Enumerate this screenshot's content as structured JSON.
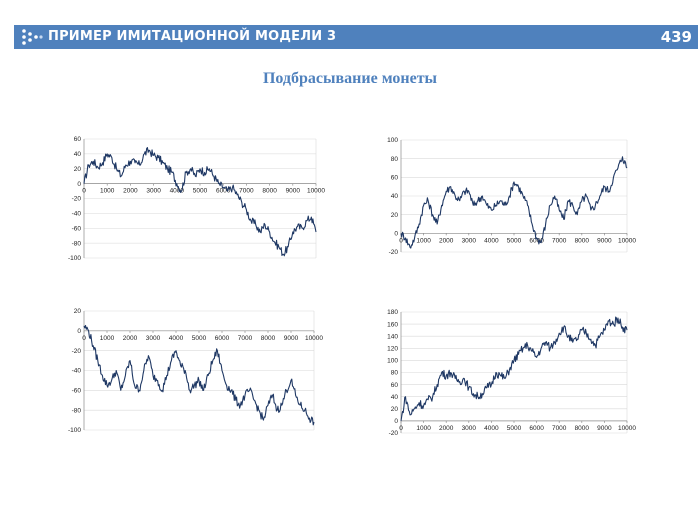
{
  "header": {
    "title": "ПРИМЕР ИМИТАЦИОННОЙ МОДЕЛИ 3",
    "page_number": "439",
    "logo_icon": "dots-arrow-icon",
    "color": "#4f81bd"
  },
  "subtitle": "Подбрасывание монеты",
  "chart_data": [
    {
      "type": "line",
      "ylim": [
        -100,
        60
      ],
      "yticks": [
        60,
        40,
        20,
        0,
        -20,
        -40,
        -60,
        -80,
        -100
      ],
      "xlim": [
        0,
        10000
      ],
      "xticks": [
        0,
        1000,
        2000,
        3000,
        4000,
        5000,
        6000,
        7000,
        8000,
        9000,
        10000
      ],
      "grid": true,
      "x": [
        0,
        200,
        400,
        600,
        800,
        1000,
        1200,
        1400,
        1600,
        1800,
        2000,
        2200,
        2400,
        2600,
        2800,
        3000,
        3200,
        3400,
        3600,
        3800,
        4000,
        4200,
        4400,
        4600,
        4800,
        5000,
        5200,
        5400,
        5600,
        5800,
        6000,
        6200,
        6400,
        6600,
        6800,
        7000,
        7200,
        7400,
        7600,
        7800,
        8000,
        8200,
        8400,
        8600,
        8800,
        9000,
        9200,
        9400,
        9600,
        9800,
        10000
      ],
      "y": [
        0,
        25,
        30,
        22,
        28,
        40,
        35,
        20,
        10,
        25,
        30,
        28,
        25,
        40,
        45,
        38,
        35,
        28,
        20,
        15,
        0,
        -10,
        15,
        20,
        10,
        20,
        15,
        20,
        10,
        0,
        -5,
        -10,
        -5,
        -15,
        -25,
        -35,
        -50,
        -55,
        -65,
        -55,
        -65,
        -78,
        -85,
        -95,
        -85,
        -65,
        -58,
        -60,
        -50,
        -45,
        -65
      ],
      "color": "#1f3864"
    },
    {
      "type": "line",
      "ylim": [
        -20,
        100
      ],
      "yticks": [
        100,
        80,
        60,
        40,
        20,
        0,
        -20
      ],
      "xlim": [
        0,
        10000
      ],
      "xticks": [
        0,
        1000,
        2000,
        3000,
        4000,
        5000,
        6000,
        7000,
        8000,
        9000,
        10000
      ],
      "grid": true,
      "x": [
        0,
        200,
        400,
        600,
        800,
        1000,
        1200,
        1400,
        1600,
        1800,
        2000,
        2200,
        2400,
        2600,
        2800,
        3000,
        3200,
        3400,
        3600,
        3800,
        4000,
        4200,
        4400,
        4600,
        4800,
        5000,
        5200,
        5400,
        5600,
        5800,
        6000,
        6200,
        6400,
        6600,
        6800,
        7000,
        7200,
        7400,
        7600,
        7800,
        8000,
        8200,
        8400,
        8600,
        8800,
        9000,
        9200,
        9400,
        9600,
        9800,
        10000
      ],
      "y": [
        0,
        -5,
        -15,
        -5,
        10,
        30,
        35,
        20,
        10,
        30,
        45,
        50,
        40,
        35,
        45,
        45,
        30,
        35,
        40,
        30,
        25,
        30,
        35,
        30,
        40,
        55,
        50,
        40,
        30,
        10,
        -5,
        -10,
        10,
        30,
        40,
        25,
        15,
        35,
        30,
        20,
        35,
        40,
        25,
        30,
        40,
        50,
        45,
        60,
        70,
        82,
        70
      ],
      "color": "#1f3864"
    },
    {
      "type": "line",
      "ylim": [
        -100,
        20
      ],
      "yticks": [
        20,
        0,
        -20,
        -40,
        -60,
        -80,
        -100
      ],
      "xlim": [
        0,
        10000
      ],
      "xticks": [
        0,
        1000,
        2000,
        3000,
        4000,
        5000,
        6000,
        7000,
        8000,
        9000,
        10000
      ],
      "grid": true,
      "x": [
        0,
        200,
        400,
        600,
        800,
        1000,
        1200,
        1400,
        1600,
        1800,
        2000,
        2200,
        2400,
        2600,
        2800,
        3000,
        3200,
        3400,
        3600,
        3800,
        4000,
        4200,
        4400,
        4600,
        4800,
        5000,
        5200,
        5400,
        5600,
        5800,
        6000,
        6200,
        6400,
        6600,
        6800,
        7000,
        7200,
        7400,
        7600,
        7800,
        8000,
        8200,
        8400,
        8600,
        8800,
        9000,
        9200,
        9400,
        9600,
        9800,
        10000
      ],
      "y": [
        5,
        0,
        -15,
        -30,
        -45,
        -55,
        -50,
        -40,
        -60,
        -45,
        -30,
        -55,
        -60,
        -40,
        -25,
        -45,
        -50,
        -60,
        -45,
        -30,
        -20,
        -35,
        -40,
        -60,
        -55,
        -50,
        -60,
        -45,
        -30,
        -20,
        -40,
        -55,
        -60,
        -70,
        -75,
        -65,
        -60,
        -70,
        -80,
        -90,
        -75,
        -65,
        -80,
        -75,
        -60,
        -50,
        -65,
        -75,
        -80,
        -88,
        -92
      ],
      "color": "#1f3864"
    },
    {
      "type": "line",
      "ylim": [
        -20,
        180
      ],
      "yticks": [
        180,
        160,
        140,
        120,
        100,
        80,
        60,
        40,
        20,
        0,
        -20
      ],
      "xlim": [
        0,
        10000
      ],
      "xticks": [
        0,
        1000,
        2000,
        3000,
        4000,
        5000,
        6000,
        7000,
        8000,
        9000,
        10000
      ],
      "grid": true,
      "x": [
        0,
        200,
        400,
        600,
        800,
        1000,
        1200,
        1400,
        1600,
        1800,
        2000,
        2200,
        2400,
        2600,
        2800,
        3000,
        3200,
        3400,
        3600,
        3800,
        4000,
        4200,
        4400,
        4600,
        4800,
        5000,
        5200,
        5400,
        5600,
        5800,
        6000,
        6200,
        6400,
        6600,
        6800,
        7000,
        7200,
        7400,
        7600,
        7800,
        8000,
        8200,
        8400,
        8600,
        8800,
        9000,
        9200,
        9400,
        9600,
        9800,
        10000
      ],
      "y": [
        0,
        40,
        10,
        20,
        30,
        25,
        35,
        40,
        60,
        80,
        75,
        80,
        70,
        65,
        70,
        55,
        45,
        40,
        45,
        55,
        60,
        80,
        75,
        70,
        85,
        100,
        110,
        120,
        125,
        115,
        105,
        120,
        130,
        120,
        130,
        145,
        155,
        140,
        130,
        135,
        150,
        145,
        135,
        125,
        140,
        150,
        165,
        160,
        170,
        155,
        150
      ],
      "color": "#1f3864"
    }
  ]
}
